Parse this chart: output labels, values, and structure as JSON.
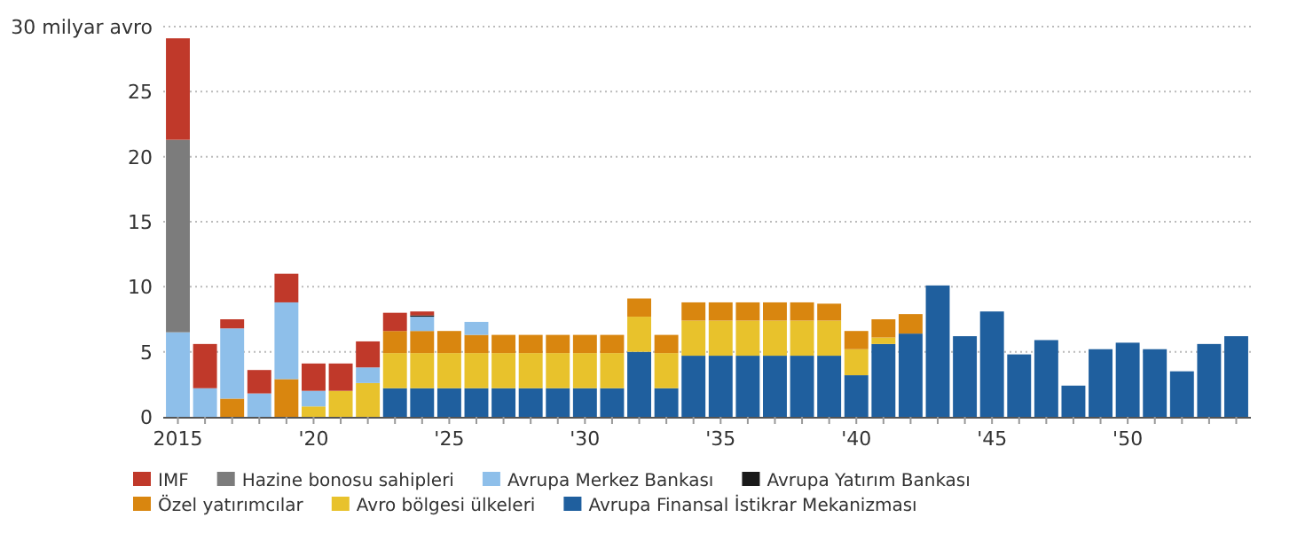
{
  "chart_data": {
    "type": "bar",
    "stacked": true,
    "grid": "y",
    "legend": "bottom",
    "categories": [
      "2015",
      null,
      null,
      null,
      null,
      "'20",
      null,
      null,
      null,
      null,
      "'25",
      null,
      null,
      null,
      null,
      "'30",
      null,
      null,
      null,
      null,
      "'35",
      null,
      null,
      null,
      null,
      "'40",
      null,
      null,
      null,
      null,
      "'45",
      null,
      null,
      null,
      null,
      "'50",
      null,
      null,
      null,
      null
    ],
    "ylim": [
      0,
      30
    ],
    "yticks": [
      0,
      5,
      10,
      15,
      20,
      25,
      {
        "value": 30,
        "label": "30 milyar avro"
      }
    ],
    "series": [
      {
        "name": "Avrupa Finansal İstikrar Mekanizması",
        "color": "#1f5f9e",
        "values": [
          null,
          null,
          null,
          null,
          null,
          null,
          null,
          null,
          2.2,
          2.2,
          2.2,
          2.2,
          2.2,
          2.2,
          2.2,
          2.2,
          2.2,
          5.0,
          2.2,
          4.7,
          4.7,
          4.7,
          4.7,
          4.7,
          4.7,
          3.2,
          5.6,
          6.4,
          10.1,
          6.2,
          8.1,
          4.8,
          5.9,
          2.4,
          5.2,
          5.7,
          5.2,
          3.5,
          5.6,
          6.2
        ]
      },
      {
        "name": "Avro bölgesi ülkeleri",
        "color": "#e8c22c",
        "values": [
          null,
          null,
          null,
          null,
          null,
          0.8,
          2.0,
          2.6,
          2.7,
          2.7,
          2.7,
          2.7,
          2.7,
          2.7,
          2.7,
          2.7,
          2.7,
          2.7,
          2.7,
          2.7,
          2.7,
          2.7,
          2.7,
          2.7,
          2.7,
          2.0,
          0.5,
          null,
          null,
          null,
          null,
          null,
          null,
          null,
          null,
          null,
          null,
          null,
          null,
          null
        ]
      },
      {
        "name": "Özel yatırımcılar",
        "color": "#d9860f",
        "values": [
          null,
          null,
          1.4,
          null,
          2.9,
          null,
          null,
          null,
          1.7,
          1.7,
          1.7,
          1.4,
          1.4,
          1.4,
          1.4,
          1.4,
          1.4,
          1.4,
          1.4,
          1.4,
          1.4,
          1.4,
          1.4,
          1.4,
          1.3,
          1.4,
          1.4,
          1.5,
          null,
          null,
          null,
          null,
          null,
          null,
          null,
          null,
          null,
          null,
          null,
          null
        ]
      },
      {
        "name": "Avrupa Merkez Bankası",
        "color": "#8ebfea",
        "values": [
          6.5,
          2.2,
          5.4,
          1.8,
          5.9,
          1.2,
          null,
          1.2,
          null,
          1.1,
          null,
          1.0,
          null,
          null,
          null,
          null,
          null,
          null,
          null,
          null,
          null,
          null,
          null,
          null,
          null,
          null,
          null,
          null,
          null,
          null,
          null,
          null,
          null,
          null,
          null,
          null,
          null,
          null,
          null,
          null
        ]
      },
      {
        "name": "Hazine bonosu sahipleri",
        "color": "#7c7c7c",
        "values": [
          14.8,
          null,
          null,
          null,
          null,
          null,
          null,
          null,
          null,
          null,
          null,
          null,
          null,
          null,
          null,
          null,
          null,
          null,
          null,
          null,
          null,
          null,
          null,
          null,
          null,
          null,
          null,
          null,
          null,
          null,
          null,
          null,
          null,
          null,
          null,
          null,
          null,
          null,
          null,
          null
        ]
      },
      {
        "name": "Avrupa Yatırım Bankası",
        "color": "#1a1a1a",
        "values": [
          null,
          null,
          null,
          null,
          null,
          null,
          null,
          null,
          null,
          0.1,
          null,
          null,
          null,
          null,
          null,
          null,
          null,
          null,
          null,
          null,
          null,
          null,
          null,
          null,
          null,
          null,
          null,
          null,
          null,
          null,
          null,
          null,
          null,
          null,
          null,
          null,
          null,
          null,
          null,
          null
        ]
      },
      {
        "name": "IMF",
        "color": "#c0392a",
        "values": [
          7.8,
          3.4,
          0.7,
          1.8,
          2.2,
          2.1,
          2.1,
          2.0,
          1.4,
          0.3,
          null,
          null,
          null,
          null,
          null,
          null,
          null,
          null,
          null,
          null,
          null,
          null,
          null,
          null,
          null,
          null,
          null,
          null,
          null,
          null,
          null,
          null,
          null,
          null,
          null,
          null,
          null,
          null,
          null,
          null
        ]
      }
    ]
  }
}
